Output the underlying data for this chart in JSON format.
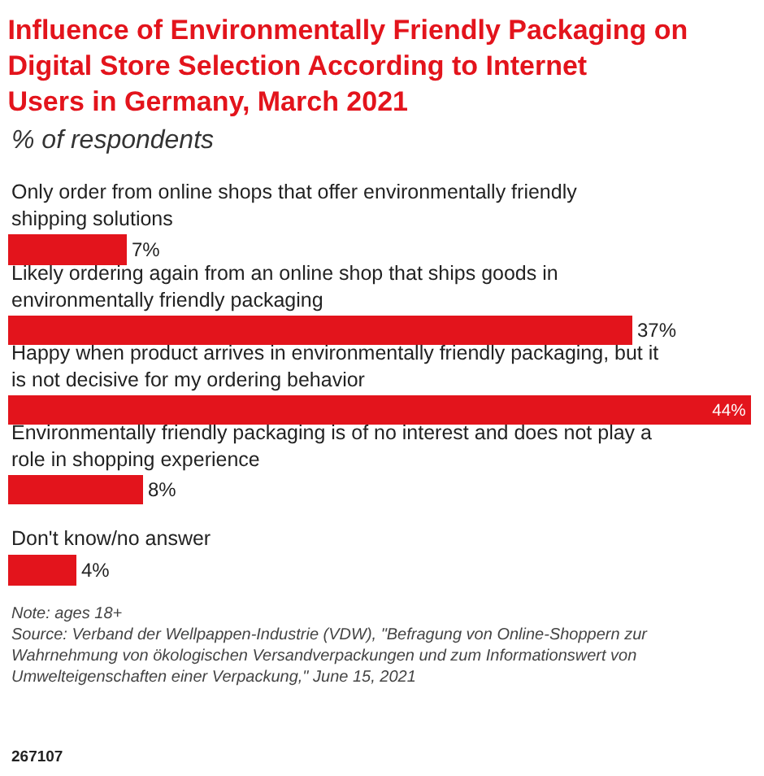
{
  "chart_data": {
    "type": "bar",
    "orientation": "horizontal",
    "title": "Influence of Environmentally Friendly Packaging on Digital Store Selection According to Internet Users in Germany, March 2021",
    "subtitle": "% of respondents",
    "categories": [
      "Only order from online shops that offer environmentally friendly shipping solutions",
      "Likely ordering again from an online shop that ships goods in environmentally friendly packaging",
      "Happy when product arrives in environmentally friendly packaging, but it is not decisive for my ordering behavior",
      "Environmentally friendly packaging is of no interest and does not play a role in shopping experience",
      "Don't know/no answer"
    ],
    "values": [
      7,
      37,
      44,
      8,
      4
    ],
    "value_labels": [
      "7%",
      "37%",
      "44%",
      "8%",
      "4%"
    ],
    "color": "#e3141c",
    "legend": false,
    "annotations": [
      "Note: ages 18+",
      "Source: Verband der Wellpappen-Industrie (VDW), \"Befragung von Online-Shoppern zur Wahrnehmung von ökologischen Versandverpackungen und zum Informationswert von Umwelteigenschaften einer Verpackung,\" June 15, 2021",
      "267107"
    ]
  }
}
